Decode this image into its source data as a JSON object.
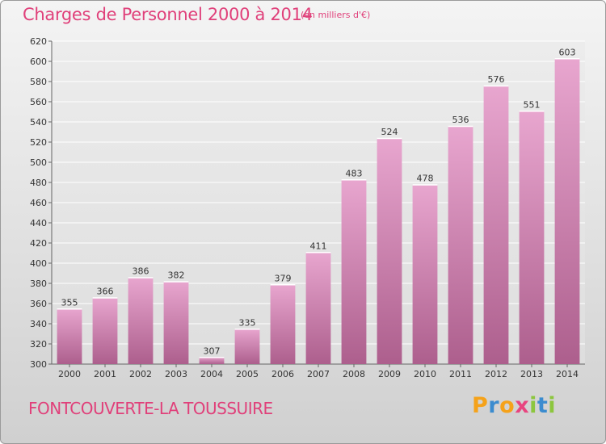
{
  "header": {
    "title": "Charges de Personnel 2000 à 2014",
    "subtitle": "(en milliers d'€)"
  },
  "footer": {
    "commune": "FONTCOUVERTE-LA TOUSSUIRE",
    "logo_letters": [
      "P",
      "r",
      "o",
      "x",
      "i",
      "t",
      "i"
    ]
  },
  "colors": {
    "title": "#e0407a",
    "bar_top": "#e8a6cf",
    "bar_bottom": "#ad5f8d",
    "bar_edge": "#ffffff"
  },
  "chart_data": {
    "type": "bar",
    "title": "Charges de Personnel 2000 à 2014",
    "subtitle": "(en milliers d'€)",
    "categories": [
      "2000",
      "2001",
      "2002",
      "2003",
      "2004",
      "2005",
      "2006",
      "2007",
      "2008",
      "2009",
      "2010",
      "2011",
      "2012",
      "2013",
      "2014"
    ],
    "values": [
      355,
      366,
      386,
      382,
      307,
      335,
      379,
      411,
      483,
      524,
      478,
      536,
      576,
      551,
      603
    ],
    "ylim": [
      300,
      620
    ],
    "yticks": [
      300,
      320,
      340,
      360,
      380,
      400,
      420,
      440,
      460,
      480,
      500,
      520,
      540,
      560,
      580,
      600,
      620
    ],
    "grid": true,
    "data_labels": true,
    "xlabel": "",
    "ylabel": ""
  }
}
